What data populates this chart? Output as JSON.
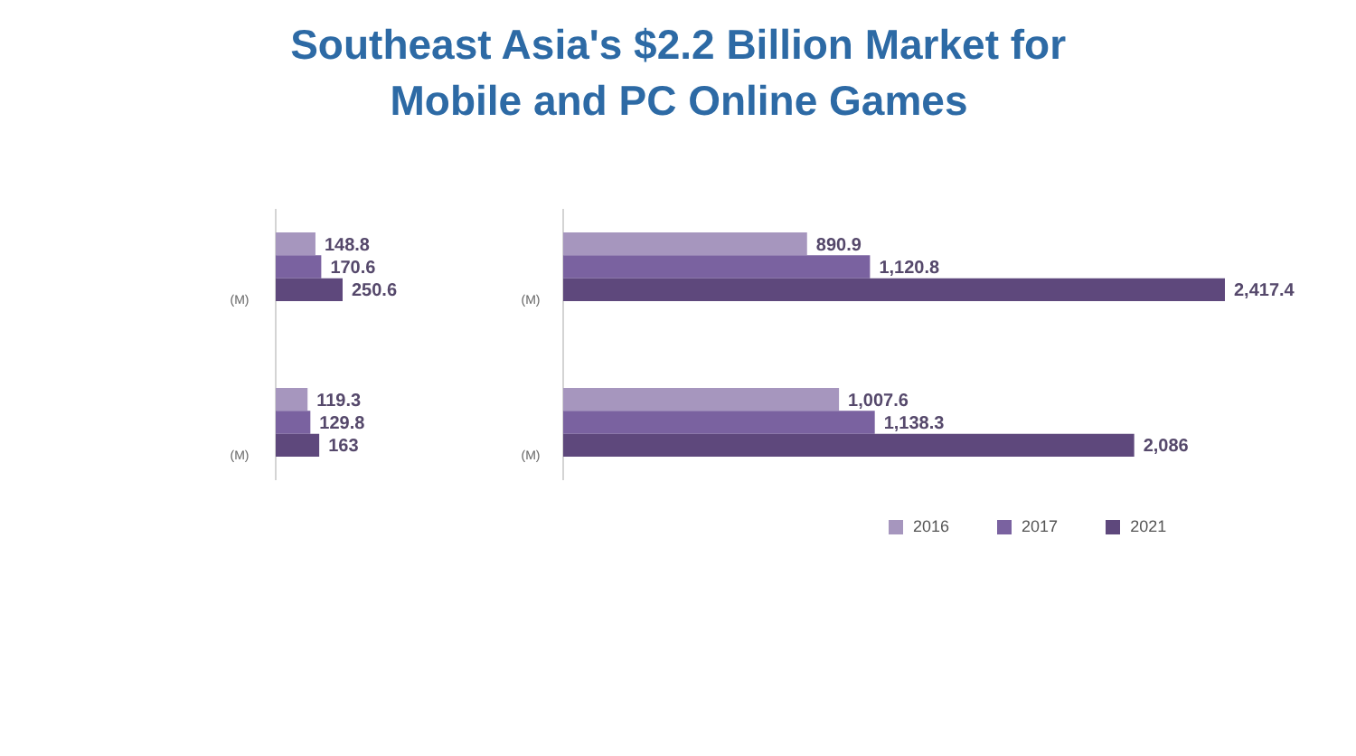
{
  "chart_data": [
    {
      "type": "bar",
      "title": "Southeast Asia's $2.2 Billion Market for Mobile and PC Online Games",
      "orientation": "horizontal",
      "categories": [
        null,
        null
      ],
      "series": [
        {
          "name": "2016",
          "color": "#a696be",
          "values": [
            148.8,
            119.3
          ]
        },
        {
          "name": "2017",
          "color": "#7a62a0",
          "values": [
            170.6,
            129.8
          ]
        },
        {
          "name": "2021",
          "color": "#5e487c",
          "values": [
            250.6,
            163
          ]
        }
      ],
      "data_labels": true,
      "annotations": [
        "(M)",
        "(M)"
      ],
      "legend": "bottom right"
    },
    {
      "type": "bar",
      "orientation": "horizontal",
      "categories": [
        null,
        null
      ],
      "series": [
        {
          "name": "2016",
          "color": "#a696be",
          "values": [
            890.9,
            1007.6
          ],
          "value_labels": [
            "890.9",
            "1,007.6"
          ]
        },
        {
          "name": "2017",
          "color": "#7a62a0",
          "values": [
            1120.8,
            1138.3
          ],
          "value_labels": [
            "1,120.8",
            "1,138.3"
          ]
        },
        {
          "name": "2021",
          "color": "#5e487c",
          "values": [
            2417.4,
            2086
          ],
          "value_labels": [
            "2,417.4",
            "2,086"
          ]
        }
      ],
      "annotations": [
        "(M)",
        "(M)"
      ],
      "legend": "bottom right"
    }
  ]
}
